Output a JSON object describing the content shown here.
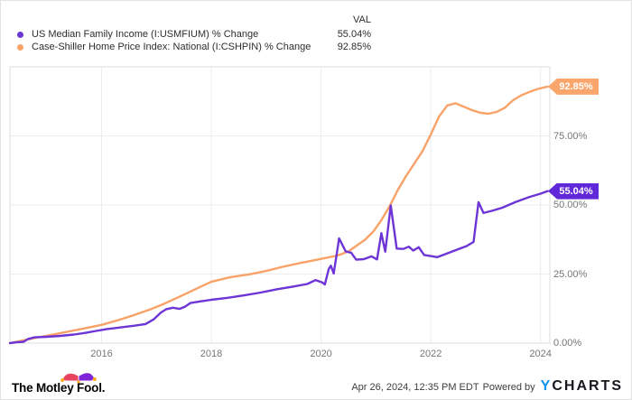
{
  "legend": {
    "val_header": "VAL",
    "items": [
      {
        "label": "US Median Family Income (I:USMFIUM) % Change",
        "value": "55.04%",
        "color": "#6d35d6"
      },
      {
        "label": "Case-Shiller Home Price Index: National (I:CSHPIN) % Change",
        "value": "92.85%",
        "color": "#f9a268"
      }
    ]
  },
  "chart_data": {
    "type": "line",
    "title": "",
    "xlabel": "",
    "ylabel": "",
    "grid": true,
    "legend_position": "top-left",
    "x_axis": {
      "min": 2014.33,
      "max": 2024.17,
      "ticks": [
        {
          "value": 2016,
          "label": "2016"
        },
        {
          "value": 2018,
          "label": "2018"
        },
        {
          "value": 2020,
          "label": "2020"
        },
        {
          "value": 2022,
          "label": "2022"
        },
        {
          "value": 2024,
          "label": "2024"
        }
      ]
    },
    "y_axis": {
      "min": 0,
      "max": 100,
      "ticks": [
        {
          "value": 0,
          "label": "0.00%"
        },
        {
          "value": 25,
          "label": "25.00%"
        },
        {
          "value": 50,
          "label": "50.00%"
        },
        {
          "value": 75,
          "label": "75.00%"
        }
      ]
    },
    "series": [
      {
        "name": "US Median Family Income (I:USMFIUM) % Change",
        "color": "#6d35d6",
        "badge_color": "#6128d9",
        "end_label": "55.04%",
        "end_value": 55.04,
        "points": [
          [
            2014.33,
            0
          ],
          [
            2014.45,
            0.3
          ],
          [
            2014.58,
            0.5
          ],
          [
            2014.66,
            1.5
          ],
          [
            2014.78,
            2.1
          ],
          [
            2015.0,
            2.3
          ],
          [
            2015.25,
            2.6
          ],
          [
            2015.5,
            3.1
          ],
          [
            2015.7,
            3.7
          ],
          [
            2015.9,
            4.4
          ],
          [
            2016.1,
            5.1
          ],
          [
            2016.35,
            5.7
          ],
          [
            2016.6,
            6.3
          ],
          [
            2016.8,
            6.9
          ],
          [
            2016.95,
            8.6
          ],
          [
            2017.08,
            11.0
          ],
          [
            2017.18,
            12.3
          ],
          [
            2017.3,
            12.8
          ],
          [
            2017.42,
            12.4
          ],
          [
            2017.52,
            13.2
          ],
          [
            2017.62,
            14.5
          ],
          [
            2017.8,
            15.1
          ],
          [
            2018.0,
            15.7
          ],
          [
            2018.3,
            16.4
          ],
          [
            2018.6,
            17.3
          ],
          [
            2018.9,
            18.3
          ],
          [
            2019.2,
            19.5
          ],
          [
            2019.5,
            20.5
          ],
          [
            2019.75,
            21.4
          ],
          [
            2019.9,
            22.8
          ],
          [
            2020.02,
            22.0
          ],
          [
            2020.07,
            21.2
          ],
          [
            2020.14,
            26.8
          ],
          [
            2020.18,
            28.0
          ],
          [
            2020.23,
            25.2
          ],
          [
            2020.33,
            37.9
          ],
          [
            2020.45,
            33.2
          ],
          [
            2020.55,
            32.7
          ],
          [
            2020.64,
            30.2
          ],
          [
            2020.78,
            30.4
          ],
          [
            2020.92,
            31.4
          ],
          [
            2021.02,
            30.3
          ],
          [
            2021.1,
            39.8
          ],
          [
            2021.17,
            33.1
          ],
          [
            2021.27,
            49.8
          ],
          [
            2021.38,
            34.2
          ],
          [
            2021.5,
            34.1
          ],
          [
            2021.6,
            34.9
          ],
          [
            2021.68,
            33.5
          ],
          [
            2021.78,
            34.7
          ],
          [
            2021.88,
            31.9
          ],
          [
            2022.0,
            31.5
          ],
          [
            2022.12,
            31.1
          ],
          [
            2022.3,
            32.5
          ],
          [
            2022.5,
            34.0
          ],
          [
            2022.65,
            35.1
          ],
          [
            2022.78,
            36.6
          ],
          [
            2022.87,
            51.0
          ],
          [
            2022.96,
            47.1
          ],
          [
            2023.12,
            47.9
          ],
          [
            2023.3,
            49.0
          ],
          [
            2023.55,
            51.1
          ],
          [
            2023.8,
            52.9
          ],
          [
            2024.0,
            54.1
          ],
          [
            2024.13,
            55.04
          ]
        ]
      },
      {
        "name": "Case-Shiller Home Price Index: National (I:CSHPIN) % Change",
        "color": "#f9a268",
        "badge_color": "#faa56b",
        "end_label": "92.85%",
        "end_value": 92.85,
        "points": [
          [
            2014.33,
            0
          ],
          [
            2014.6,
            1.1
          ],
          [
            2014.9,
            2.3
          ],
          [
            2015.2,
            3.4
          ],
          [
            2015.5,
            4.6
          ],
          [
            2015.8,
            5.8
          ],
          [
            2016.0,
            6.6
          ],
          [
            2016.3,
            8.3
          ],
          [
            2016.6,
            10.2
          ],
          [
            2016.9,
            12.3
          ],
          [
            2017.1,
            13.9
          ],
          [
            2017.4,
            16.6
          ],
          [
            2017.7,
            19.4
          ],
          [
            2018.0,
            22.2
          ],
          [
            2018.35,
            23.9
          ],
          [
            2018.7,
            24.9
          ],
          [
            2019.0,
            26.1
          ],
          [
            2019.3,
            27.6
          ],
          [
            2019.6,
            28.9
          ],
          [
            2019.9,
            30.1
          ],
          [
            2020.1,
            30.9
          ],
          [
            2020.3,
            31.7
          ],
          [
            2020.5,
            33.2
          ],
          [
            2020.65,
            35.3
          ],
          [
            2020.8,
            37.4
          ],
          [
            2020.95,
            40.3
          ],
          [
            2021.1,
            44.5
          ],
          [
            2021.25,
            49.5
          ],
          [
            2021.4,
            55.5
          ],
          [
            2021.55,
            60.5
          ],
          [
            2021.7,
            65.0
          ],
          [
            2021.85,
            69.5
          ],
          [
            2022.0,
            75.5
          ],
          [
            2022.15,
            82.0
          ],
          [
            2022.3,
            86.0
          ],
          [
            2022.45,
            86.8
          ],
          [
            2022.6,
            85.6
          ],
          [
            2022.75,
            84.3
          ],
          [
            2022.9,
            83.4
          ],
          [
            2023.05,
            83.0
          ],
          [
            2023.2,
            83.7
          ],
          [
            2023.35,
            85.2
          ],
          [
            2023.5,
            87.9
          ],
          [
            2023.65,
            89.7
          ],
          [
            2023.8,
            90.9
          ],
          [
            2023.95,
            92.0
          ],
          [
            2024.13,
            92.85
          ]
        ]
      }
    ]
  },
  "footer": {
    "brand": "The Motley Fool.",
    "timestamp": "Apr 26, 2024, 12:35 PM EDT",
    "powered_by": "Powered by",
    "ycharts_y": "Y",
    "ycharts_rest": "CHARTS"
  },
  "colors": {
    "grid": "#ececec",
    "frame": "#dcdcdc",
    "tick_text": "#767676",
    "legend_text": "#2d2d2d",
    "fool_cap_left": "#e8435f",
    "fool_cap_right": "#8024d8",
    "fool_cap_balls": "#fbaa19",
    "ycharts_blue": "#0b93f6"
  }
}
